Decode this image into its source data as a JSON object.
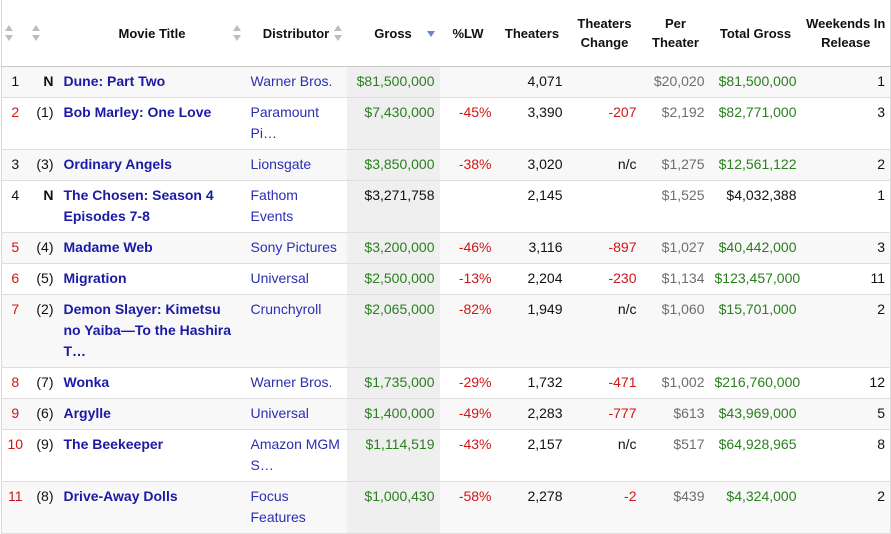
{
  "columns": {
    "title": "Movie Title",
    "distributor": "Distributor",
    "gross": "Gross",
    "lw": "%LW",
    "theaters": "Theaters",
    "theaters_change": "Theaters Change",
    "per_theater": "Per Theater",
    "total_gross": "Total Gross",
    "weekends": "Weekends In Release"
  },
  "sort": {
    "column": "gross",
    "direction": "descending"
  },
  "rows": [
    {
      "rank": "1",
      "prev": "N",
      "title": "Dune: Part Two",
      "distributor": "Warner Bros.",
      "gross": "$81,500,000",
      "lw": "",
      "theaters": "4,071",
      "change": "",
      "per": "$20,020",
      "total": "$81,500,000",
      "weekends": "1"
    },
    {
      "rank": "2",
      "prev": "(1)",
      "title": "Bob Marley: One Love",
      "distributor": "Paramount Pi…",
      "gross": "$7,430,000",
      "lw": "-45%",
      "theaters": "3,390",
      "change": "-207",
      "per": "$2,192",
      "total": "$82,771,000",
      "weekends": "3"
    },
    {
      "rank": "3",
      "prev": "(3)",
      "title": "Ordinary Angels",
      "distributor": "Lionsgate",
      "gross": "$3,850,000",
      "lw": "-38%",
      "theaters": "3,020",
      "change": "n/c",
      "per": "$1,275",
      "total": "$12,561,122",
      "weekends": "2"
    },
    {
      "rank": "4",
      "prev": "N",
      "title": "The Chosen: Season 4 Episodes 7-8",
      "distributor": "Fathom Events",
      "gross": "$3,271,758",
      "lw": "",
      "theaters": "2,145",
      "change": "",
      "per": "$1,525",
      "total": "$4,032,388",
      "weekends": "1"
    },
    {
      "rank": "5",
      "prev": "(4)",
      "title": "Madame Web",
      "distributor": "Sony Pictures",
      "gross": "$3,200,000",
      "lw": "-46%",
      "theaters": "3,116",
      "change": "-897",
      "per": "$1,027",
      "total": "$40,442,000",
      "weekends": "3"
    },
    {
      "rank": "6",
      "prev": "(5)",
      "title": "Migration",
      "distributor": "Universal",
      "gross": "$2,500,000",
      "lw": "-13%",
      "theaters": "2,204",
      "change": "-230",
      "per": "$1,134",
      "total": "$123,457,000",
      "weekends": "11"
    },
    {
      "rank": "7",
      "prev": "(2)",
      "title": "Demon Slayer: Kimetsu no Yaiba—To the Hashira T…",
      "distributor": "Crunchyroll",
      "gross": "$2,065,000",
      "lw": "-82%",
      "theaters": "1,949",
      "change": "n/c",
      "per": "$1,060",
      "total": "$15,701,000",
      "weekends": "2"
    },
    {
      "rank": "8",
      "prev": "(7)",
      "title": "Wonka",
      "distributor": "Warner Bros.",
      "gross": "$1,735,000",
      "lw": "-29%",
      "theaters": "1,732",
      "change": "-471",
      "per": "$1,002",
      "total": "$216,760,000",
      "weekends": "12"
    },
    {
      "rank": "9",
      "prev": "(6)",
      "title": "Argylle",
      "distributor": "Universal",
      "gross": "$1,400,000",
      "lw": "-49%",
      "theaters": "2,283",
      "change": "-777",
      "per": "$613",
      "total": "$43,969,000",
      "weekends": "5"
    },
    {
      "rank": "10",
      "prev": "(9)",
      "title": "The Beekeeper",
      "distributor": "Amazon MGM S…",
      "gross": "$1,114,519",
      "lw": "-43%",
      "theaters": "2,157",
      "change": "n/c",
      "per": "$517",
      "total": "$64,928,965",
      "weekends": "8"
    },
    {
      "rank": "11",
      "prev": "(8)",
      "title": "Drive-Away Dolls",
      "distributor": "Focus Features",
      "gross": "$1,000,430",
      "lw": "-58%",
      "theaters": "2,278",
      "change": "-2",
      "per": "$439",
      "total": "$4,324,000",
      "weekends": "2"
    }
  ],
  "styles": {
    "green_gross_rows": [
      0,
      1,
      2,
      4,
      5,
      6,
      7,
      8,
      9,
      10
    ],
    "green_total_rows": [
      0,
      1,
      2,
      4,
      5,
      6,
      7,
      8,
      9,
      10
    ],
    "red_rank_rows": [
      1,
      4,
      5,
      6,
      7,
      8,
      9,
      10
    ],
    "colors": {
      "green": "#2a7f1e",
      "red": "#d01616",
      "link": "#1a1aa6",
      "grey": "#6e6e6e"
    }
  }
}
